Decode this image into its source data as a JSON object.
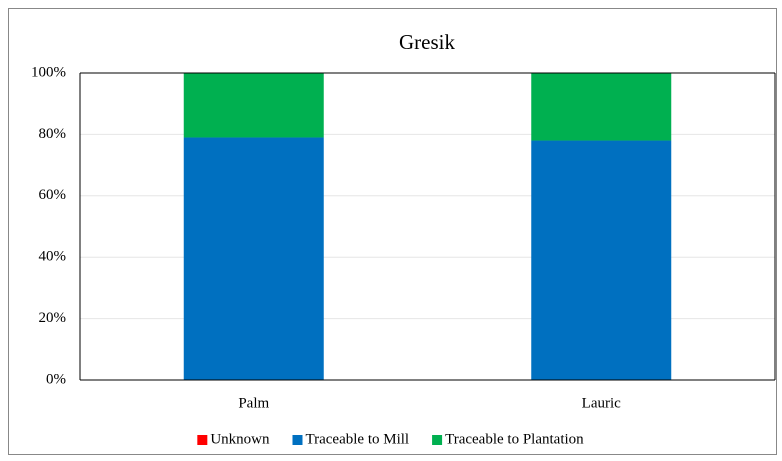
{
  "chart_data": {
    "type": "stacked_bar",
    "title": "Gresik",
    "categories": [
      "Palm",
      "Lauric"
    ],
    "series": [
      {
        "name": "Unknown",
        "color": "#ff0000",
        "values": [
          0,
          0
        ]
      },
      {
        "name": "Traceable to Mill",
        "color": "#0070c0",
        "values": [
          79,
          78
        ]
      },
      {
        "name": "Traceable to Plantation",
        "color": "#00b050",
        "values": [
          21,
          22
        ]
      }
    ],
    "ylim": [
      0,
      100
    ],
    "yticks": [
      {
        "value": 0,
        "label": "0%"
      },
      {
        "value": 20,
        "label": "20%"
      },
      {
        "value": 40,
        "label": "40%"
      },
      {
        "value": 60,
        "label": "60%"
      },
      {
        "value": 80,
        "label": "80%"
      },
      {
        "value": 100,
        "label": "100%"
      }
    ],
    "grid": true,
    "legend": "bottom"
  }
}
